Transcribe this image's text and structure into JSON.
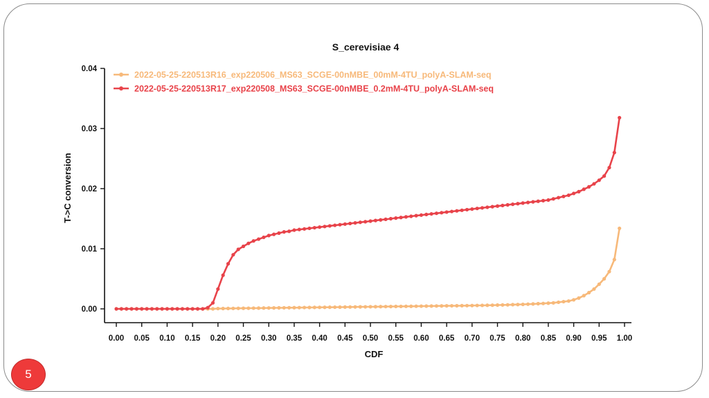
{
  "slide": {
    "number": "5",
    "frame_color": "#8a8a8a",
    "number_badge_color": "#ee3a3a"
  },
  "chart_data": {
    "type": "line",
    "title": "S_cerevisiae 4",
    "xlabel": "CDF",
    "ylabel": "T->C conversion",
    "xlim": [
      0.0,
      1.0
    ],
    "ylim": [
      0.0,
      0.04
    ],
    "x_ticks": [
      "0.00",
      "0.05",
      "0.10",
      "0.15",
      "0.20",
      "0.25",
      "0.30",
      "0.35",
      "0.40",
      "0.45",
      "0.50",
      "0.55",
      "0.60",
      "0.65",
      "0.70",
      "0.75",
      "0.80",
      "0.85",
      "0.90",
      "0.95",
      "1.00"
    ],
    "y_ticks": [
      "0.00",
      "0.01",
      "0.02",
      "0.03",
      "0.04"
    ],
    "grid": false,
    "legend_position": "top-left",
    "x": [
      0.0,
      0.01,
      0.02,
      0.03,
      0.04,
      0.05,
      0.06,
      0.07,
      0.08,
      0.09,
      0.1,
      0.11,
      0.12,
      0.13,
      0.14,
      0.15,
      0.16,
      0.17,
      0.18,
      0.19,
      0.2,
      0.21,
      0.22,
      0.23,
      0.24,
      0.25,
      0.26,
      0.27,
      0.28,
      0.29,
      0.3,
      0.31,
      0.32,
      0.33,
      0.34,
      0.35,
      0.36,
      0.37,
      0.38,
      0.39,
      0.4,
      0.41,
      0.42,
      0.43,
      0.44,
      0.45,
      0.46,
      0.47,
      0.48,
      0.49,
      0.5,
      0.51,
      0.52,
      0.53,
      0.54,
      0.55,
      0.56,
      0.57,
      0.58,
      0.59,
      0.6,
      0.61,
      0.62,
      0.63,
      0.64,
      0.65,
      0.66,
      0.67,
      0.68,
      0.69,
      0.7,
      0.71,
      0.72,
      0.73,
      0.74,
      0.75,
      0.76,
      0.77,
      0.78,
      0.79,
      0.8,
      0.81,
      0.82,
      0.83,
      0.84,
      0.85,
      0.86,
      0.87,
      0.88,
      0.89,
      0.9,
      0.91,
      0.92,
      0.93,
      0.94,
      0.95,
      0.96,
      0.97,
      0.98,
      0.99
    ],
    "series": [
      {
        "name": "2022-05-25-220513R16_exp220506_MS63_SCGE-00nMBE_00mM-4TU_polyA-SLAM-seq",
        "color": "#f7b97a",
        "values": [
          0,
          0,
          0,
          0,
          0,
          0,
          0,
          0,
          0,
          0,
          0,
          0,
          0,
          0,
          0,
          0,
          0,
          0,
          0,
          0,
          5e-05,
          6e-05,
          7e-05,
          8e-05,
          9e-05,
          0.0001,
          0.00011,
          0.00012,
          0.00013,
          0.00014,
          0.00015,
          0.00016,
          0.00017,
          0.00018,
          0.00019,
          0.0002,
          0.00021,
          0.00022,
          0.00023,
          0.00024,
          0.00025,
          0.00026,
          0.00027,
          0.00028,
          0.00029,
          0.0003,
          0.00031,
          0.00032,
          0.00033,
          0.00034,
          0.00035,
          0.00036,
          0.00037,
          0.00038,
          0.00039,
          0.0004,
          0.00041,
          0.00042,
          0.00043,
          0.00044,
          0.00045,
          0.00046,
          0.00047,
          0.00048,
          0.00049,
          0.0005,
          0.00051,
          0.00052,
          0.00053,
          0.00054,
          0.00055,
          0.00057,
          0.00058,
          0.0006,
          0.00061,
          0.00063,
          0.00065,
          0.00067,
          0.0007,
          0.00072,
          0.00075,
          0.00078,
          0.00082,
          0.00086,
          0.0009,
          0.00095,
          0.001,
          0.0011,
          0.0012,
          0.0013,
          0.0015,
          0.0018,
          0.0022,
          0.0027,
          0.0033,
          0.0041,
          0.005,
          0.0062,
          0.0082,
          0.0134
        ]
      },
      {
        "name": "2022-05-25-220513R17_exp220508_MS63_SCGE-00nMBE_0.2mM-4TU_polyA-SLAM-seq",
        "color": "#e8434a",
        "values": [
          0,
          0,
          0,
          0,
          0,
          0,
          0,
          0,
          0,
          0,
          0,
          0,
          0,
          0,
          0,
          0,
          0,
          0,
          0.0002,
          0.001,
          0.0033,
          0.0056,
          0.0075,
          0.009,
          0.0099,
          0.0104,
          0.0109,
          0.0113,
          0.0116,
          0.0119,
          0.0122,
          0.0124,
          0.0126,
          0.0128,
          0.0129,
          0.0131,
          0.0132,
          0.0133,
          0.0134,
          0.0135,
          0.0136,
          0.0137,
          0.0138,
          0.0139,
          0.014,
          0.0141,
          0.0142,
          0.0143,
          0.0144,
          0.0145,
          0.0146,
          0.0147,
          0.0148,
          0.0149,
          0.015,
          0.0151,
          0.0152,
          0.0153,
          0.0154,
          0.0155,
          0.0156,
          0.0157,
          0.0158,
          0.0159,
          0.016,
          0.0161,
          0.0162,
          0.0163,
          0.0164,
          0.0165,
          0.0166,
          0.0167,
          0.0168,
          0.0169,
          0.017,
          0.0171,
          0.0172,
          0.0173,
          0.0174,
          0.0175,
          0.0176,
          0.0177,
          0.0178,
          0.0179,
          0.018,
          0.0181,
          0.0183,
          0.0185,
          0.0187,
          0.0189,
          0.0192,
          0.0195,
          0.0199,
          0.0203,
          0.0208,
          0.0214,
          0.0221,
          0.0235,
          0.026,
          0.0318
        ]
      }
    ]
  }
}
